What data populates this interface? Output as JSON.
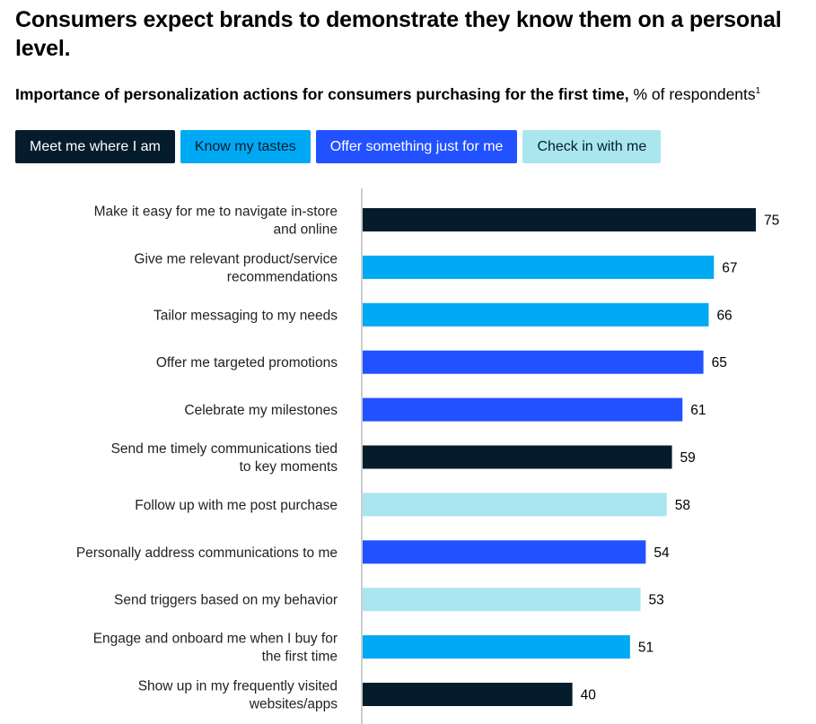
{
  "title": "Consumers expect brands to demonstrate they know them on a personal level.",
  "subtitle": {
    "bold": "Importance of personalization actions for consumers purchasing for the first time,",
    "regular": " % of respondents",
    "footnote": "1"
  },
  "legend": [
    {
      "label": "Meet me where I am",
      "color": "#051c2c",
      "text_color": "#ffffff"
    },
    {
      "label": "Know my tastes",
      "color": "#00a9f4",
      "text_color": "#051c2c"
    },
    {
      "label": "Offer something just for me",
      "color": "#2251ff",
      "text_color": "#ffffff"
    },
    {
      "label": "Check in with me",
      "color": "#aae6f0",
      "text_color": "#051c2c"
    }
  ],
  "chart_data": {
    "type": "bar",
    "orientation": "horizontal",
    "title": "Importance of personalization actions for consumers purchasing for the first time",
    "unit": "% of respondents",
    "xlim": [
      0,
      75
    ],
    "categories": [
      [
        "Make it easy for me to navigate in-store",
        "and online"
      ],
      [
        "Give me relevant product/service",
        "recommendations"
      ],
      [
        "Tailor messaging to my needs"
      ],
      [
        "Offer me targeted promotions"
      ],
      [
        "Celebrate my milestones"
      ],
      [
        "Send me timely communications tied",
        "to key moments"
      ],
      [
        "Follow up with me post purchase"
      ],
      [
        "Personally address communications to me"
      ],
      [
        "Send triggers based on my behavior"
      ],
      [
        "Engage and onboard me when I buy for",
        "the first time"
      ],
      [
        "Show up in my frequently visited",
        "websites/apps"
      ]
    ],
    "values": [
      75,
      67,
      66,
      65,
      61,
      59,
      58,
      54,
      53,
      51,
      40
    ],
    "groups": [
      "Meet me where I am",
      "Know my tastes",
      "Know my tastes",
      "Offer something just for me",
      "Offer something just for me",
      "Meet me where I am",
      "Check in with me",
      "Offer something just for me",
      "Check in with me",
      "Know my tastes",
      "Meet me where I am"
    ],
    "colors": {
      "Meet me where I am": "#051c2c",
      "Know my tastes": "#00a9f4",
      "Offer something just for me": "#2251ff",
      "Check in with me": "#aae6f0"
    }
  }
}
